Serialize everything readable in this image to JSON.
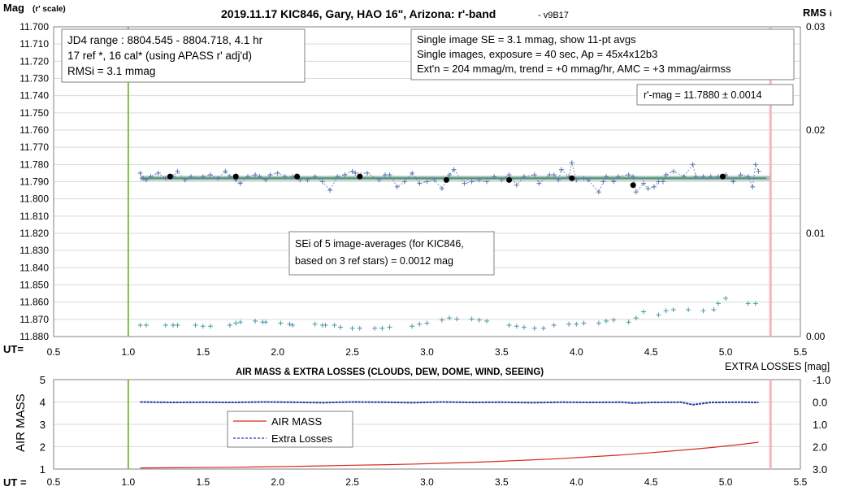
{
  "top_chart": {
    "title": "2019.11.17 KIC846, Gary, HAO 16\", Arizona: r'-band",
    "version": "- v9B17",
    "y_label_main": "Mag",
    "y_label_sub": "(r' scale)",
    "y2_label_main": "RMS",
    "y2_label_sub": "i",
    "x_label": "UT=",
    "y_ticks": [
      "11.700",
      "11.710",
      "11.720",
      "11.730",
      "11.740",
      "11.750",
      "11.760",
      "11.770",
      "11.780",
      "11.790",
      "11.800",
      "11.810",
      "11.820",
      "11.830",
      "11.840",
      "11.850",
      "11.860",
      "11.870",
      "11.880"
    ],
    "y2_ticks": [
      "0.03",
      "0.02",
      "0.01",
      "0.00"
    ],
    "x_ticks": [
      "0.5",
      "1.0",
      "1.5",
      "2.0",
      "2.5",
      "3.0",
      "3.5",
      "4.0",
      "4.5",
      "5.0",
      "5.5"
    ],
    "box_left": [
      "JD4 range : 8804.545 - 8804.718,  4.1  hr",
      "17 ref *, 16 cal* (using APASS r' adj'd)",
      "RMSi = 3.1 mmag"
    ],
    "box_right": [
      "Single image SE = 3.1 mmag, show  11-pt avgs",
      "Single images, exposure = 40 sec, Ap = 45x4x12b3",
      "Ext'n = 204 mmag/m, trend =  +0 mmag/hr, AMC = +3 mmag/airmss"
    ],
    "rmag_box": "r'-mag = 11.7880 ± 0.0014",
    "sei_box": [
      "SEi of 5 image-averages (for KIC846,",
      "based on 3 ref stars) = 0.0012 mag"
    ]
  },
  "bottom_chart": {
    "title": "AIR MASS & EXTRA LOSSES (CLOUDS, DEW, DOME, WIND, SEEING)",
    "y_label": "AIR MASS",
    "y2_label": "EXTRA LOSSES [mag]",
    "x_label": "UT =",
    "y_ticks": [
      "5",
      "4",
      "3",
      "2",
      "1"
    ],
    "y2_ticks": [
      "-1.0",
      "0.0",
      "1.0",
      "2.0",
      "3.0"
    ],
    "x_ticks": [
      "0.5",
      "1.0",
      "1.5",
      "2.0",
      "2.5",
      "3.0",
      "3.5",
      "4.0",
      "4.5",
      "5.0",
      "5.5"
    ],
    "legend": [
      "AIR MASS",
      "Extra Losses"
    ]
  },
  "colors": {
    "single_points": "#5a78b0",
    "averages": "#000000",
    "fit_line": "#3aa07a",
    "fit_band": "#bdbdbd",
    "rms_points": "#4a97a8",
    "start_line": "#7ac143",
    "end_line": "#f4b6bc",
    "airmass": "#d42a1c",
    "extra_losses": "#1e3da8"
  },
  "chart_data": [
    {
      "type": "scatter",
      "title": "2019.11.17 KIC846, Gary, HAO 16\", Arizona: r'-band",
      "xlabel": "UT=",
      "ylabel": "Mag (r' scale)",
      "y2label": "RMS i",
      "xlim": [
        0.5,
        5.5
      ],
      "ylim": [
        11.88,
        11.7
      ],
      "y2lim": [
        0.0,
        0.03
      ],
      "x_markers": [
        1.0,
        5.3
      ],
      "fit_value": 11.788,
      "series": [
        {
          "x": [
            1.08,
            1.1,
            1.12,
            1.15,
            1.2,
            1.25,
            1.3,
            1.33,
            1.38,
            1.42,
            1.5,
            1.55,
            1.6,
            1.65,
            1.68,
            1.72,
            1.75,
            1.8,
            1.85,
            1.88,
            1.92,
            1.95,
            2.0,
            2.05,
            2.1,
            2.15,
            2.2,
            2.25,
            2.3,
            2.35,
            2.4,
            2.45,
            2.5,
            2.52,
            2.6,
            2.68,
            2.72,
            2.75,
            2.8,
            2.85,
            2.9,
            2.95,
            3.0,
            3.05,
            3.1,
            3.15,
            3.18,
            3.25,
            3.3,
            3.35,
            3.4,
            3.45,
            3.5,
            3.55,
            3.6,
            3.65,
            3.72,
            3.75,
            3.82,
            3.85,
            3.88,
            3.9,
            3.95,
            3.97,
            4.0,
            4.05,
            4.08,
            4.15,
            4.18,
            4.2,
            4.25,
            4.28,
            4.35,
            4.38,
            4.4,
            4.45,
            4.48,
            4.52,
            4.55,
            4.58,
            4.6,
            4.65,
            4.72,
            4.78,
            4.8,
            4.85,
            4.9,
            4.95,
            4.98,
            5.0,
            5.05,
            5.1,
            5.15,
            5.18,
            5.2,
            5.22
          ],
          "y": [
            11.785,
            11.788,
            11.789,
            11.787,
            11.785,
            11.788,
            11.787,
            11.784,
            11.789,
            11.787,
            11.787,
            11.786,
            11.788,
            11.784,
            11.787,
            11.789,
            11.791,
            11.787,
            11.786,
            11.787,
            11.789,
            11.786,
            11.785,
            11.787,
            11.787,
            11.789,
            11.789,
            11.787,
            11.79,
            11.795,
            11.787,
            11.786,
            11.784,
            11.785,
            11.785,
            11.789,
            11.786,
            11.786,
            11.793,
            11.79,
            11.785,
            11.791,
            11.79,
            11.789,
            11.794,
            11.786,
            11.783,
            11.791,
            11.79,
            11.789,
            11.79,
            11.787,
            11.789,
            11.786,
            11.792,
            11.787,
            11.786,
            11.791,
            11.786,
            11.786,
            11.789,
            11.783,
            11.787,
            11.779,
            11.789,
            11.788,
            11.789,
            11.796,
            11.79,
            11.787,
            11.79,
            11.787,
            11.786,
            11.787,
            11.796,
            11.791,
            11.794,
            11.793,
            11.79,
            11.79,
            11.786,
            11.784,
            11.787,
            11.78,
            11.787,
            11.787,
            11.787,
            11.787,
            11.787,
            11.786,
            11.79,
            11.786,
            11.787,
            11.793,
            11.78,
            11.784
          ]
        },
        {
          "name": "11-pt avgs",
          "x": [
            1.28,
            1.72,
            2.13,
            2.55,
            3.13,
            3.55,
            3.97,
            4.38,
            4.98
          ],
          "y": [
            11.787,
            11.787,
            11.787,
            11.787,
            11.789,
            11.789,
            11.788,
            11.792,
            11.787
          ]
        },
        {
          "axis": "y2",
          "x": [
            1.08,
            1.12,
            1.25,
            1.3,
            1.33,
            1.45,
            1.5,
            1.55,
            1.68,
            1.72,
            1.75,
            1.85,
            1.9,
            1.92,
            2.02,
            2.08,
            2.1,
            2.25,
            2.3,
            2.32,
            2.38,
            2.42,
            2.5,
            2.55,
            2.65,
            2.7,
            2.75,
            2.9,
            2.95,
            3.0,
            3.1,
            3.15,
            3.2,
            3.3,
            3.35,
            3.4,
            3.55,
            3.6,
            3.65,
            3.72,
            3.78,
            3.85,
            3.95,
            4.0,
            4.05,
            4.15,
            4.2,
            4.25,
            4.35,
            4.4,
            4.45,
            4.55,
            4.6,
            4.65,
            4.75,
            4.85,
            4.92,
            4.95,
            5.0,
            5.15,
            5.2
          ],
          "y": [
            0.0011,
            0.0011,
            0.0011,
            0.0011,
            0.0011,
            0.0011,
            0.001,
            0.001,
            0.0011,
            0.0013,
            0.0014,
            0.0015,
            0.0014,
            0.0014,
            0.0013,
            0.0012,
            0.0011,
            0.0012,
            0.0011,
            0.0011,
            0.0011,
            0.0009,
            0.0008,
            0.0008,
            0.0008,
            0.0008,
            0.0009,
            0.001,
            0.0012,
            0.0013,
            0.0016,
            0.0018,
            0.0017,
            0.0017,
            0.0016,
            0.0015,
            0.0011,
            0.001,
            0.0009,
            0.0008,
            0.0008,
            0.0011,
            0.0012,
            0.0012,
            0.0013,
            0.0013,
            0.0015,
            0.0016,
            0.0014,
            0.0018,
            0.0024,
            0.0021,
            0.0025,
            0.0026,
            0.0026,
            0.0025,
            0.0026,
            0.0032,
            0.0037,
            0.0032,
            0.0032
          ]
        }
      ]
    },
    {
      "type": "line",
      "title": "AIR MASS & EXTRA LOSSES (CLOUDS, DEW, DOME, WIND, SEEING)",
      "xlabel": "UT =",
      "ylabel": "AIR MASS",
      "y2label": "EXTRA LOSSES [mag]",
      "xlim": [
        0.5,
        5.5
      ],
      "ylim": [
        1,
        5
      ],
      "y2lim": [
        3.0,
        -1.0
      ],
      "x_markers": [
        1.0,
        5.3
      ],
      "series": [
        {
          "name": "AIR MASS",
          "x": [
            1.08,
            1.3,
            1.5,
            1.7,
            1.9,
            2.1,
            2.3,
            2.5,
            2.7,
            2.9,
            3.1,
            3.3,
            3.5,
            3.7,
            3.9,
            4.1,
            4.3,
            4.5,
            4.7,
            4.9,
            5.1,
            5.22
          ],
          "y": [
            1.05,
            1.06,
            1.07,
            1.08,
            1.1,
            1.12,
            1.14,
            1.17,
            1.19,
            1.22,
            1.26,
            1.3,
            1.35,
            1.41,
            1.47,
            1.55,
            1.63,
            1.73,
            1.84,
            1.96,
            2.1,
            2.2
          ]
        },
        {
          "name": "Extra Losses",
          "x": [
            1.08,
            1.3,
            1.5,
            1.7,
            1.9,
            2.1,
            2.3,
            2.5,
            2.7,
            2.9,
            3.1,
            3.3,
            3.5,
            3.7,
            3.9,
            4.1,
            4.3,
            4.38,
            4.5,
            4.7,
            4.78,
            4.9,
            5.1,
            5.22
          ],
          "y": [
            0.0,
            0.02,
            0.01,
            0.02,
            0.0,
            0.01,
            0.03,
            0.0,
            0.01,
            0.03,
            0.0,
            0.02,
            0.01,
            0.03,
            0.01,
            0.02,
            0.01,
            0.05,
            0.02,
            0.01,
            0.12,
            0.02,
            0.01,
            0.02
          ]
        }
      ]
    }
  ]
}
